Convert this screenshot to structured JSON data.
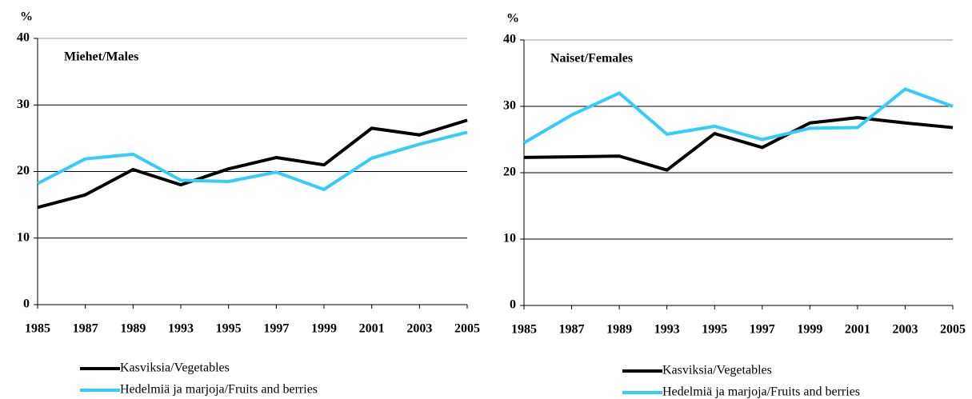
{
  "chart_data": [
    {
      "type": "line",
      "title": "Miehet/Males",
      "y_label": "%",
      "categories": [
        "1985",
        "1987",
        "1989",
        "1993",
        "1995",
        "1997",
        "1999",
        "2001",
        "2003",
        "2005"
      ],
      "series": [
        {
          "name": "Kasviksia/Vegetables",
          "color": "#000000",
          "values": [
            14.6,
            16.5,
            20.3,
            18.0,
            20.4,
            22.1,
            21.0,
            26.5,
            25.5,
            27.7
          ]
        },
        {
          "name": "Hedelmiä ja marjoja/Fruits and berries",
          "color": "#33ccff",
          "values": [
            18.2,
            21.9,
            22.6,
            18.7,
            18.5,
            19.9,
            17.3,
            22.0,
            24.1,
            25.9
          ]
        }
      ],
      "ylim": [
        0,
        40
      ],
      "yticks": [
        0,
        10,
        20,
        30,
        40
      ],
      "grid": true
    },
    {
      "type": "line",
      "title": "Naiset/Females",
      "y_label": "%",
      "categories": [
        "1985",
        "1987",
        "1989",
        "1993",
        "1995",
        "1997",
        "1999",
        "2001",
        "2003",
        "2005"
      ],
      "series": [
        {
          "name": "Kasviksia/Vegetables",
          "color": "#000000",
          "values": [
            22.3,
            22.4,
            22.5,
            20.4,
            25.9,
            23.8,
            27.5,
            28.3,
            27.5,
            26.8
          ]
        },
        {
          "name": "Hedelmiä ja marjoja/Fruits and berries",
          "color": "#33ccff",
          "values": [
            24.5,
            28.7,
            32.0,
            25.8,
            27.0,
            25.0,
            26.7,
            26.8,
            32.6,
            30.0
          ]
        }
      ],
      "ylim": [
        0,
        40
      ],
      "yticks": [
        0,
        10,
        20,
        30,
        40
      ],
      "grid": true
    }
  ]
}
